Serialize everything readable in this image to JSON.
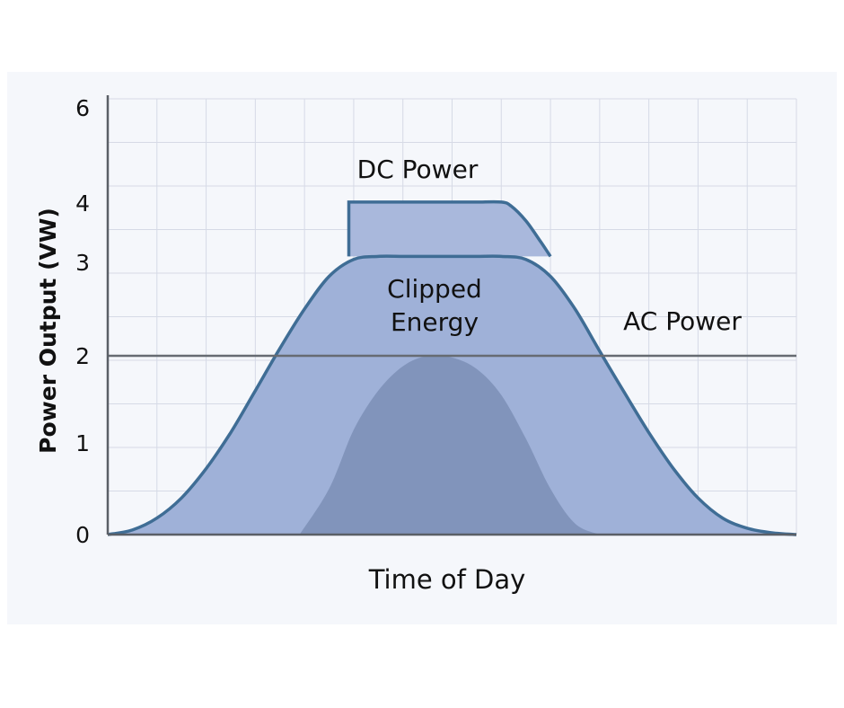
{
  "chart_data": {
    "type": "area",
    "xlabel": "Time of Day",
    "ylabel": "Power Output (VW)",
    "ylim": [
      0,
      6
    ],
    "y_ticks": [
      {
        "value": 0,
        "label": "0"
      },
      {
        "value": 1,
        "label": "1"
      },
      {
        "value": 2,
        "label": "2"
      },
      {
        "value": 3,
        "label": "3"
      },
      {
        "value": 4,
        "label": "4"
      },
      {
        "value": 6,
        "label": "6"
      }
    ],
    "grid": true,
    "x_tick_labels": [],
    "series": [
      {
        "key": "dc",
        "name": "DC Power",
        "x": [
          5.0,
          5.5,
          6.0,
          6.5,
          7.0,
          7.5,
          8.0,
          8.5,
          9.0,
          9.5,
          10.0,
          10.5,
          11.0,
          11.5,
          12.0,
          12.5,
          13.0,
          13.5,
          14.0,
          14.5,
          15.0,
          15.5,
          16.0,
          16.5,
          17.0,
          17.5,
          18.0,
          18.5,
          19.0
        ],
        "values": [
          0.0,
          0.05,
          0.18,
          0.4,
          0.72,
          1.12,
          1.6,
          2.08,
          2.5,
          2.85,
          3.05,
          3.1,
          3.1,
          3.1,
          3.1,
          3.1,
          3.1,
          3.05,
          2.85,
          2.5,
          2.05,
          1.58,
          1.12,
          0.72,
          0.4,
          0.18,
          0.07,
          0.02,
          0.0
        ]
      },
      {
        "key": "clipped",
        "name": "Clipped Energy",
        "x": [
          9.9,
          9.9,
          10.5,
          11.0,
          11.5,
          12.0,
          12.5,
          13.0,
          13.2,
          13.5,
          13.8,
          14.0
        ],
        "upper": [
          3.1,
          4.02,
          4.02,
          4.02,
          4.02,
          4.02,
          4.02,
          4.02,
          3.95,
          3.7,
          3.35,
          3.1
        ]
      },
      {
        "key": "ac",
        "name": "AC Power",
        "x": [
          8.9,
          9.5,
          10.0,
          10.5,
          11.0,
          11.5,
          12.0,
          12.5,
          13.0,
          13.5,
          14.0,
          14.5,
          15.0
        ],
        "values": [
          0.0,
          0.5,
          1.15,
          1.6,
          1.88,
          2.0,
          1.98,
          1.85,
          1.55,
          1.05,
          0.5,
          0.12,
          0.0
        ]
      }
    ],
    "reference_line": {
      "y": 2.0
    },
    "annotations": {
      "dc": "DC Power",
      "clipped_line1": "Clipped",
      "clipped_line2": "Energy",
      "ac": "AC Power"
    },
    "colors": {
      "dc_fill": "#9fb1d8",
      "clipped_fill": "#a9b8dc",
      "ac_fill": "#7b8fb6",
      "outline": "#3f6d95",
      "grid": "#d6dae6",
      "axis": "#5a5f66",
      "reference_line": "#666b72"
    }
  }
}
